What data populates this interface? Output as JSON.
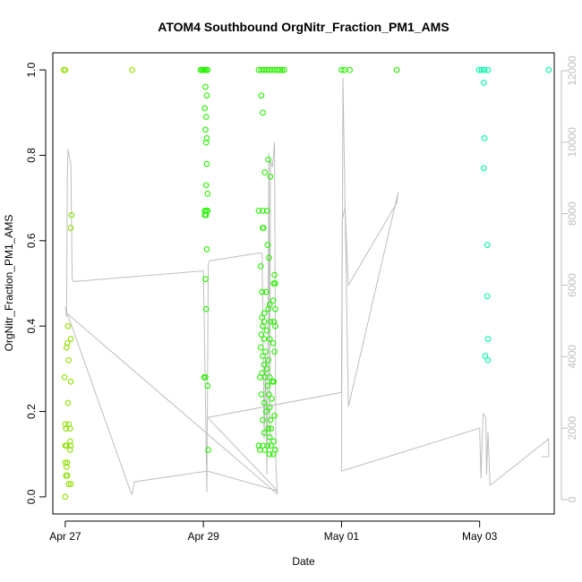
{
  "chart_data": {
    "type": "scatter",
    "title": "ATOM4 Southbound OrgNitr_Fraction_PM1_AMS",
    "xlabel": "Date",
    "ylabel": "OrgNitr_Fraction_PM1_AMS",
    "x_unit": "days since Apr 27 00:00",
    "xlim": [
      -0.18,
      7.08
    ],
    "ylim": [
      -0.04,
      1.04
    ],
    "y_ticks": [
      0.0,
      0.2,
      0.4,
      0.6,
      0.8,
      1.0
    ],
    "y_tick_labels": [
      "0.0",
      "0.2",
      "0.4",
      "0.6",
      "0.8",
      "1.0"
    ],
    "x_ticks": [
      0,
      2,
      4,
      6
    ],
    "x_tick_labels": [
      "Apr 27",
      "Apr 29",
      "May 01",
      "May 03"
    ],
    "right_axis": {
      "label": "",
      "ylim": [
        -400,
        12500
      ],
      "ticks": [
        0,
        2000,
        4000,
        6000,
        8000,
        10000,
        12000
      ],
      "tick_labels": [
        "0",
        "2000",
        "4000",
        "6000",
        "8000",
        "10000",
        "12000"
      ],
      "color": "#bebebe"
    },
    "series": [
      {
        "name": "OrgNitr_Fraction_PM1_AMS",
        "points": [
          [
            -0.02,
            1.0
          ],
          [
            0.0,
            1.0
          ],
          [
            -0.01,
            0.28
          ],
          [
            0.0,
            0.17
          ],
          [
            0.01,
            0.16
          ],
          [
            0.0,
            0.12
          ],
          [
            0.02,
            0.12
          ],
          [
            0.0,
            0.08
          ],
          [
            0.02,
            0.07
          ],
          [
            0.03,
            0.08
          ],
          [
            0.01,
            0.05
          ],
          [
            0.03,
            0.05
          ],
          [
            0.05,
            0.03
          ],
          [
            0.0,
            0.0
          ],
          [
            0.04,
            0.4
          ],
          [
            0.03,
            0.36
          ],
          [
            0.02,
            0.35
          ],
          [
            0.05,
            0.32
          ],
          [
            0.04,
            0.22
          ],
          [
            0.05,
            0.17
          ],
          [
            0.07,
            0.16
          ],
          [
            0.08,
            0.03
          ],
          [
            0.07,
            0.13
          ],
          [
            0.08,
            0.12
          ],
          [
            0.07,
            0.11
          ],
          [
            0.09,
            0.66
          ],
          [
            0.08,
            0.63
          ],
          [
            0.08,
            0.37
          ],
          [
            0.08,
            0.27
          ],
          [
            0.97,
            1.0
          ],
          [
            1.96,
            1.0
          ],
          [
            1.98,
            1.0
          ],
          [
            2.0,
            1.0
          ],
          [
            2.02,
            1.0
          ],
          [
            2.04,
            1.0
          ],
          [
            2.06,
            1.0
          ],
          [
            2.03,
            0.96
          ],
          [
            2.05,
            0.94
          ],
          [
            2.02,
            0.91
          ],
          [
            2.04,
            0.89
          ],
          [
            2.03,
            0.86
          ],
          [
            2.05,
            0.84
          ],
          [
            2.04,
            0.83
          ],
          [
            2.05,
            0.78
          ],
          [
            2.04,
            0.73
          ],
          [
            2.06,
            0.71
          ],
          [
            2.02,
            0.67
          ],
          [
            2.04,
            0.67
          ],
          [
            2.06,
            0.67
          ],
          [
            2.02,
            0.66
          ],
          [
            2.04,
            0.66
          ],
          [
            2.05,
            0.58
          ],
          [
            2.03,
            0.51
          ],
          [
            2.04,
            0.44
          ],
          [
            2.01,
            0.28
          ],
          [
            2.03,
            0.28
          ],
          [
            2.06,
            0.26
          ],
          [
            2.07,
            0.11
          ],
          [
            2.8,
            1.0
          ],
          [
            2.84,
            1.0
          ],
          [
            2.88,
            1.0
          ],
          [
            2.92,
            1.0
          ],
          [
            2.96,
            1.0
          ],
          [
            3.0,
            1.0
          ],
          [
            3.04,
            1.0
          ],
          [
            3.08,
            1.0
          ],
          [
            3.11,
            1.0
          ],
          [
            3.14,
            1.0
          ],
          [
            3.17,
            1.0
          ],
          [
            2.84,
            0.94
          ],
          [
            2.86,
            0.9
          ],
          [
            2.94,
            0.79
          ],
          [
            2.89,
            0.76
          ],
          [
            2.97,
            0.75
          ],
          [
            2.8,
            0.67
          ],
          [
            2.86,
            0.67
          ],
          [
            2.92,
            0.67
          ],
          [
            2.86,
            0.63
          ],
          [
            2.87,
            0.63
          ],
          [
            2.93,
            0.59
          ],
          [
            2.95,
            0.56
          ],
          [
            2.83,
            0.54
          ],
          [
            3.03,
            0.52
          ],
          [
            3.02,
            0.5
          ],
          [
            3.04,
            0.5
          ],
          [
            2.85,
            0.48
          ],
          [
            2.91,
            0.48
          ],
          [
            3.01,
            0.46
          ],
          [
            2.96,
            0.45
          ],
          [
            3.04,
            0.44
          ],
          [
            2.88,
            0.43
          ],
          [
            2.94,
            0.44
          ],
          [
            2.85,
            0.42
          ],
          [
            2.88,
            0.41
          ],
          [
            2.97,
            0.41
          ],
          [
            3.02,
            0.41
          ],
          [
            3.04,
            0.4
          ],
          [
            2.86,
            0.4
          ],
          [
            2.92,
            0.39
          ],
          [
            2.84,
            0.38
          ],
          [
            2.88,
            0.37
          ],
          [
            2.96,
            0.37
          ],
          [
            3.01,
            0.36
          ],
          [
            2.83,
            0.35
          ],
          [
            2.9,
            0.34
          ],
          [
            3.03,
            0.34
          ],
          [
            2.86,
            0.33
          ],
          [
            2.94,
            0.32
          ],
          [
            2.88,
            0.31
          ],
          [
            2.92,
            0.3
          ],
          [
            2.85,
            0.29
          ],
          [
            2.96,
            0.28
          ],
          [
            2.89,
            0.28
          ],
          [
            3.0,
            0.27
          ],
          [
            2.82,
            0.28
          ],
          [
            2.93,
            0.26
          ],
          [
            3.02,
            0.27
          ],
          [
            2.84,
            0.24
          ],
          [
            2.88,
            0.22
          ],
          [
            2.96,
            0.21
          ],
          [
            2.91,
            0.2
          ],
          [
            3.03,
            0.19
          ],
          [
            2.86,
            0.18
          ],
          [
            2.97,
            0.18
          ],
          [
            2.94,
            0.16
          ],
          [
            2.98,
            0.16
          ],
          [
            2.88,
            0.15
          ],
          [
            2.96,
            0.14
          ],
          [
            3.02,
            0.13
          ],
          [
            2.8,
            0.12
          ],
          [
            2.86,
            0.12
          ],
          [
            2.93,
            0.12
          ],
          [
            2.98,
            0.12
          ],
          [
            3.04,
            0.11
          ],
          [
            2.82,
            0.11
          ],
          [
            2.89,
            0.11
          ],
          [
            2.96,
            0.1
          ],
          [
            3.01,
            0.1
          ],
          [
            2.95,
            0.24
          ],
          [
            2.99,
            0.23
          ],
          [
            4.0,
            1.0
          ],
          [
            4.04,
            1.0
          ],
          [
            4.12,
            1.0
          ],
          [
            4.8,
            1.0
          ],
          [
            5.99,
            1.0
          ],
          [
            6.03,
            1.0
          ],
          [
            6.07,
            1.0
          ],
          [
            6.12,
            1.0
          ],
          [
            6.06,
            0.97
          ],
          [
            6.07,
            0.84
          ],
          [
            6.06,
            0.77
          ],
          [
            6.11,
            0.59
          ],
          [
            6.11,
            0.47
          ],
          [
            6.12,
            0.37
          ],
          [
            6.08,
            0.33
          ],
          [
            6.12,
            0.32
          ],
          [
            7.0,
            1.0
          ]
        ],
        "color_by_time": [
          "#8ee000",
          "#28f000",
          "#00f4a8"
        ]
      },
      {
        "name": "secondary-line",
        "axis": "right",
        "color": "#bebebe",
        "points": [
          [
            0.0,
            5400
          ],
          [
            0.02,
            5100
          ],
          [
            0.03,
            9100
          ],
          [
            0.04,
            9800
          ],
          [
            0.06,
            9600
          ],
          [
            0.08,
            9400
          ],
          [
            0.1,
            6200
          ],
          [
            0.12,
            6100
          ],
          [
            2.0,
            6400
          ],
          [
            2.05,
            200
          ],
          [
            2.07,
            6600
          ],
          [
            2.1,
            6700
          ],
          [
            2.15,
            6700
          ],
          [
            2.8,
            6900
          ],
          [
            2.85,
            6900
          ],
          [
            2.88,
            1700
          ],
          [
            2.9,
            4000
          ],
          [
            2.92,
            700
          ],
          [
            2.93,
            3000
          ],
          [
            2.95,
            9700
          ],
          [
            2.96,
            1500
          ],
          [
            2.97,
            9500
          ],
          [
            3.0,
            9300
          ],
          [
            3.03,
            10000
          ],
          [
            3.05,
            1000
          ],
          [
            3.07,
            160
          ],
          [
            0.03,
            5200
          ],
          [
            0.95,
            200
          ],
          [
            0.97,
            150
          ],
          [
            1.0,
            500
          ],
          [
            2.06,
            800
          ],
          [
            3.07,
            250
          ],
          [
            2.9,
            600
          ],
          [
            2.06,
            2300
          ],
          [
            4.0,
            3000
          ],
          [
            4.01,
            7800
          ],
          [
            4.05,
            8200
          ],
          [
            4.1,
            6000
          ],
          [
            4.8,
            8300
          ],
          [
            4.82,
            8600
          ],
          [
            4.1,
            2600
          ],
          [
            4.02,
            11800
          ],
          [
            4.0,
            800
          ],
          [
            6.0,
            2000
          ],
          [
            6.02,
            600
          ],
          [
            6.05,
            2400
          ],
          [
            6.09,
            2300
          ],
          [
            6.1,
            700
          ],
          [
            6.12,
            1900
          ],
          [
            6.15,
            400
          ],
          [
            7.0,
            1700
          ],
          [
            7.0,
            1200
          ],
          [
            6.9,
            1200
          ]
        ]
      }
    ]
  }
}
